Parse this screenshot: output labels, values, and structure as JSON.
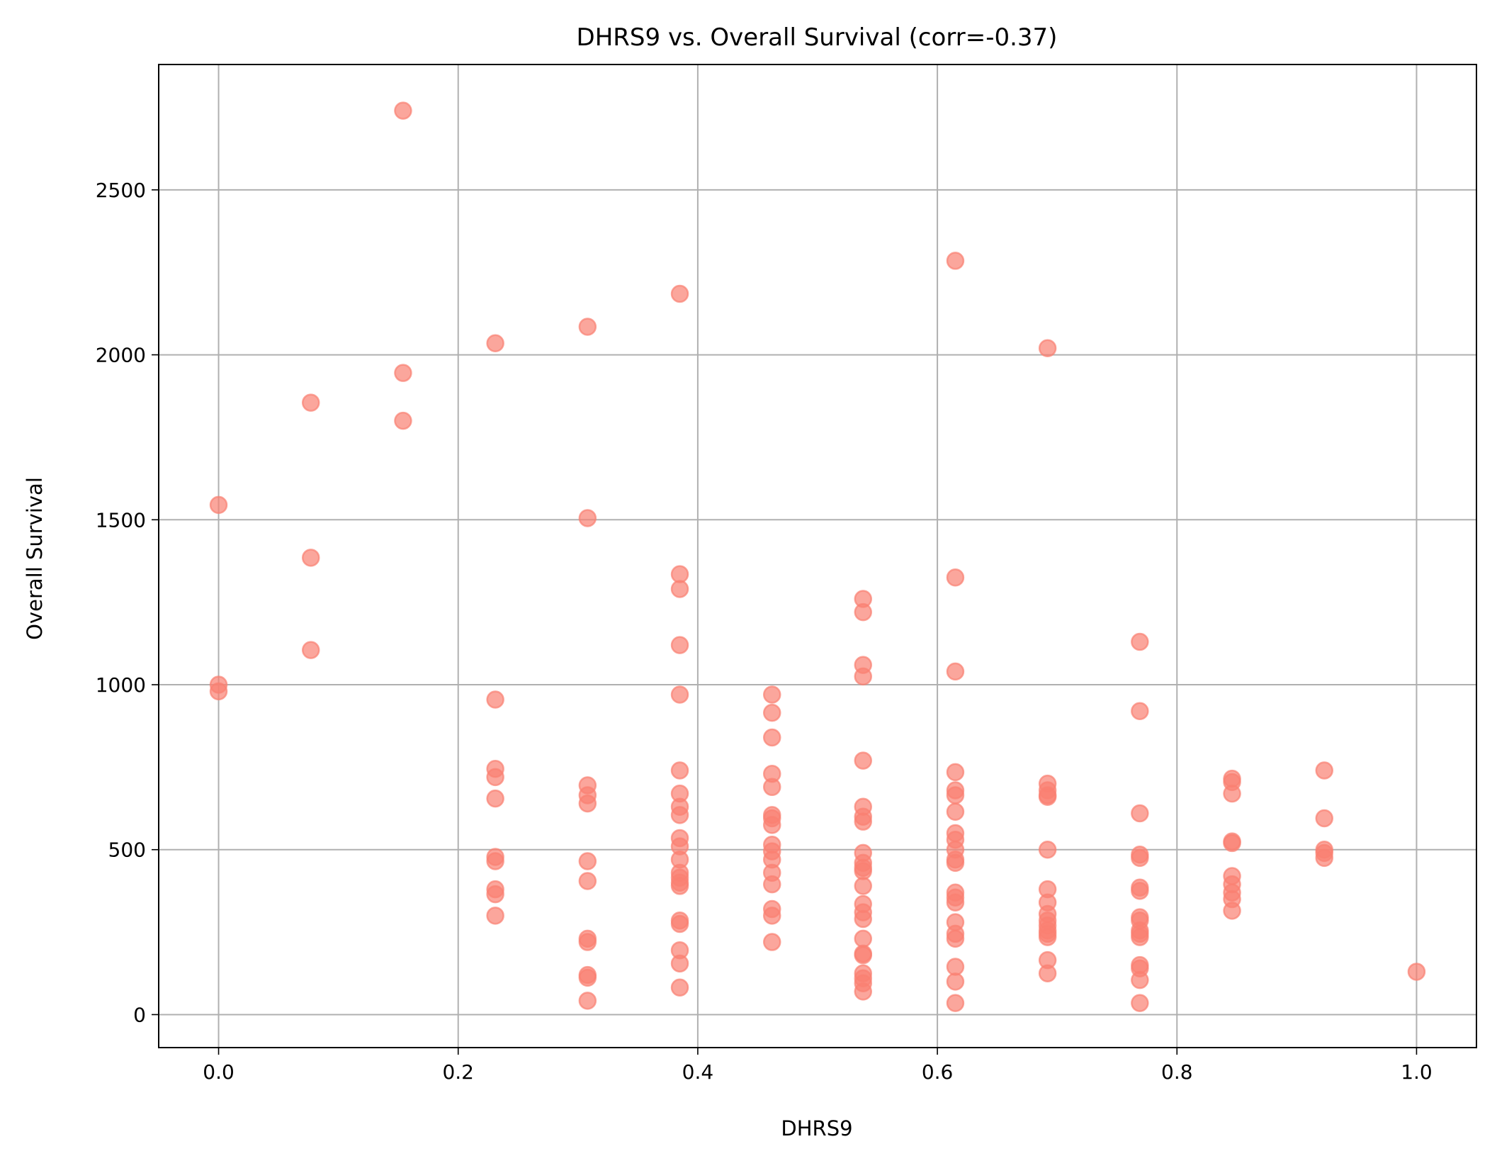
{
  "chart_data": {
    "type": "scatter",
    "title": "DHRS9 vs. Overall Survival (corr=-0.37)",
    "xlabel": "DHRS9",
    "ylabel": "Overall Survival",
    "xlim": [
      -0.05,
      1.05
    ],
    "ylim": [
      -100,
      2880
    ],
    "xticks": [
      0.0,
      0.2,
      0.4,
      0.6,
      0.8,
      1.0
    ],
    "xtick_labels": [
      "0.0",
      "0.2",
      "0.4",
      "0.6",
      "0.8",
      "1.0"
    ],
    "yticks": [
      0,
      500,
      1000,
      1500,
      2000,
      2500
    ],
    "ytick_labels": [
      "0",
      "500",
      "1000",
      "1500",
      "2000",
      "2500"
    ],
    "grid": true,
    "marker_color": "#fa8072",
    "marker_alpha": 0.7,
    "points": [
      [
        0.0,
        1545
      ],
      [
        0.0,
        1000
      ],
      [
        0.0,
        980
      ],
      [
        0.077,
        1855
      ],
      [
        0.077,
        1385
      ],
      [
        0.077,
        1105
      ],
      [
        0.154,
        2740
      ],
      [
        0.154,
        1945
      ],
      [
        0.154,
        1800
      ],
      [
        0.231,
        2035
      ],
      [
        0.231,
        955
      ],
      [
        0.231,
        745
      ],
      [
        0.231,
        720
      ],
      [
        0.231,
        655
      ],
      [
        0.231,
        478
      ],
      [
        0.231,
        465
      ],
      [
        0.231,
        380
      ],
      [
        0.231,
        365
      ],
      [
        0.231,
        300
      ],
      [
        0.308,
        2085
      ],
      [
        0.308,
        1505
      ],
      [
        0.308,
        695
      ],
      [
        0.308,
        665
      ],
      [
        0.308,
        640
      ],
      [
        0.308,
        465
      ],
      [
        0.308,
        405
      ],
      [
        0.308,
        230
      ],
      [
        0.308,
        220
      ],
      [
        0.308,
        120
      ],
      [
        0.308,
        112
      ],
      [
        0.308,
        42
      ],
      [
        0.385,
        2185
      ],
      [
        0.385,
        1335
      ],
      [
        0.385,
        1290
      ],
      [
        0.385,
        1120
      ],
      [
        0.385,
        970
      ],
      [
        0.385,
        740
      ],
      [
        0.385,
        670
      ],
      [
        0.385,
        630
      ],
      [
        0.385,
        605
      ],
      [
        0.385,
        535
      ],
      [
        0.385,
        510
      ],
      [
        0.385,
        470
      ],
      [
        0.385,
        430
      ],
      [
        0.385,
        415
      ],
      [
        0.385,
        400
      ],
      [
        0.385,
        390
      ],
      [
        0.385,
        285
      ],
      [
        0.385,
        275
      ],
      [
        0.385,
        195
      ],
      [
        0.385,
        155
      ],
      [
        0.385,
        82
      ],
      [
        0.462,
        970
      ],
      [
        0.462,
        915
      ],
      [
        0.462,
        840
      ],
      [
        0.462,
        730
      ],
      [
        0.462,
        690
      ],
      [
        0.462,
        605
      ],
      [
        0.462,
        595
      ],
      [
        0.462,
        575
      ],
      [
        0.462,
        515
      ],
      [
        0.462,
        495
      ],
      [
        0.462,
        470
      ],
      [
        0.462,
        430
      ],
      [
        0.462,
        395
      ],
      [
        0.462,
        320
      ],
      [
        0.462,
        300
      ],
      [
        0.462,
        220
      ],
      [
        0.538,
        1260
      ],
      [
        0.538,
        1220
      ],
      [
        0.538,
        1060
      ],
      [
        0.538,
        1025
      ],
      [
        0.538,
        770
      ],
      [
        0.538,
        630
      ],
      [
        0.538,
        600
      ],
      [
        0.538,
        585
      ],
      [
        0.538,
        490
      ],
      [
        0.538,
        460
      ],
      [
        0.538,
        445
      ],
      [
        0.538,
        435
      ],
      [
        0.538,
        390
      ],
      [
        0.538,
        335
      ],
      [
        0.538,
        310
      ],
      [
        0.538,
        290
      ],
      [
        0.538,
        230
      ],
      [
        0.538,
        185
      ],
      [
        0.538,
        180
      ],
      [
        0.538,
        125
      ],
      [
        0.538,
        110
      ],
      [
        0.538,
        95
      ],
      [
        0.538,
        70
      ],
      [
        0.615,
        2285
      ],
      [
        0.615,
        1325
      ],
      [
        0.615,
        1040
      ],
      [
        0.615,
        735
      ],
      [
        0.615,
        680
      ],
      [
        0.615,
        665
      ],
      [
        0.615,
        615
      ],
      [
        0.615,
        550
      ],
      [
        0.615,
        530
      ],
      [
        0.615,
        500
      ],
      [
        0.615,
        470
      ],
      [
        0.615,
        460
      ],
      [
        0.615,
        370
      ],
      [
        0.615,
        355
      ],
      [
        0.615,
        340
      ],
      [
        0.615,
        280
      ],
      [
        0.615,
        245
      ],
      [
        0.615,
        230
      ],
      [
        0.615,
        145
      ],
      [
        0.615,
        100
      ],
      [
        0.615,
        35
      ],
      [
        0.692,
        2020
      ],
      [
        0.692,
        700
      ],
      [
        0.692,
        680
      ],
      [
        0.692,
        665
      ],
      [
        0.692,
        660
      ],
      [
        0.692,
        500
      ],
      [
        0.692,
        380
      ],
      [
        0.692,
        340
      ],
      [
        0.692,
        305
      ],
      [
        0.692,
        285
      ],
      [
        0.692,
        270
      ],
      [
        0.692,
        255
      ],
      [
        0.692,
        245
      ],
      [
        0.692,
        235
      ],
      [
        0.692,
        165
      ],
      [
        0.692,
        125
      ],
      [
        0.769,
        1130
      ],
      [
        0.769,
        920
      ],
      [
        0.769,
        610
      ],
      [
        0.769,
        485
      ],
      [
        0.769,
        475
      ],
      [
        0.769,
        385
      ],
      [
        0.769,
        375
      ],
      [
        0.769,
        295
      ],
      [
        0.769,
        285
      ],
      [
        0.769,
        255
      ],
      [
        0.769,
        245
      ],
      [
        0.769,
        235
      ],
      [
        0.769,
        150
      ],
      [
        0.769,
        140
      ],
      [
        0.769,
        105
      ],
      [
        0.769,
        35
      ],
      [
        0.846,
        715
      ],
      [
        0.846,
        705
      ],
      [
        0.846,
        670
      ],
      [
        0.846,
        525
      ],
      [
        0.846,
        520
      ],
      [
        0.846,
        420
      ],
      [
        0.846,
        395
      ],
      [
        0.846,
        370
      ],
      [
        0.846,
        350
      ],
      [
        0.846,
        315
      ],
      [
        0.923,
        740
      ],
      [
        0.923,
        595
      ],
      [
        0.923,
        500
      ],
      [
        0.923,
        490
      ],
      [
        0.923,
        475
      ],
      [
        1.0,
        130
      ]
    ]
  }
}
